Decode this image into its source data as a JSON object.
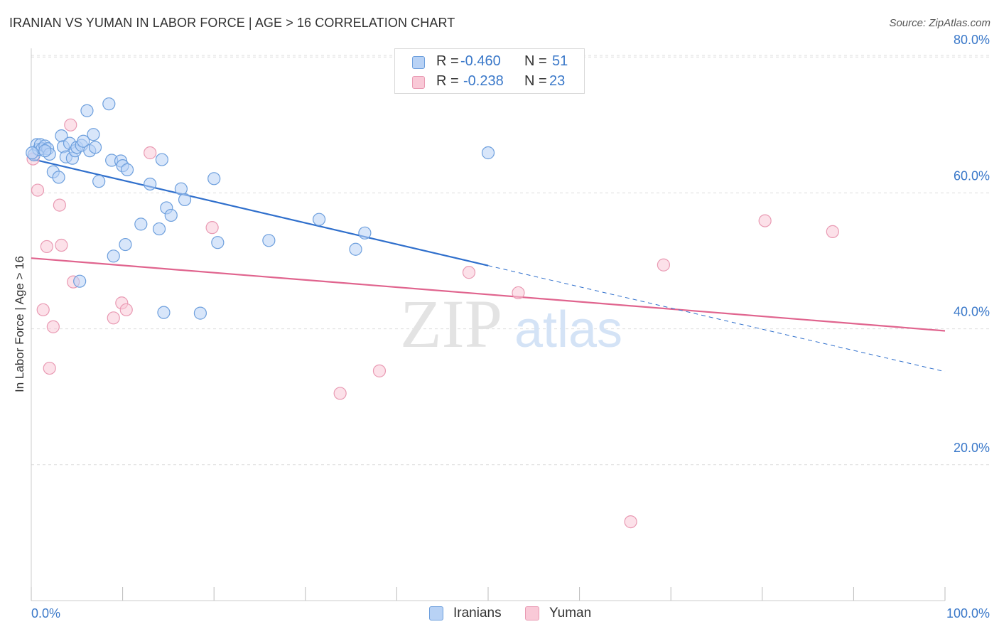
{
  "title": "IRANIAN VS YUMAN IN LABOR FORCE | AGE > 16 CORRELATION CHART",
  "source": "Source: ZipAtlas.com",
  "watermark": {
    "zip": "ZIP",
    "atlas": "atlas"
  },
  "legend": {
    "rows": [
      {
        "r_label": "R =",
        "r_value": "-0.460",
        "n_label": "N =",
        "n_value": "51"
      },
      {
        "r_label": "R =",
        "r_value": "-0.238",
        "n_label": "N =",
        "n_value": "23"
      }
    ]
  },
  "colors": {
    "blue_fill": "#b8d2f5",
    "blue_stroke": "#6d9fdd",
    "blue_line": "#2f6fcc",
    "pink_fill": "#f9c9d7",
    "pink_stroke": "#e99ab3",
    "pink_line": "#e0648e",
    "tick_text": "#3a78c9",
    "grid": "#dddddd"
  },
  "chart_data": {
    "type": "scatter",
    "title": "IRANIAN VS YUMAN IN LABOR FORCE | AGE > 16 CORRELATION CHART",
    "xlabel": "",
    "ylabel": "In Labor Force | Age > 16",
    "xlim": [
      0,
      100
    ],
    "ylim": [
      0,
      84
    ],
    "x_tick_labels": [
      "0.0%",
      "100.0%"
    ],
    "y_ticks": [
      20,
      40,
      60,
      80
    ],
    "y_tick_labels": [
      "20.0%",
      "40.0%",
      "60.0%",
      "80.0%"
    ],
    "series": [
      {
        "name": "Iranians",
        "r": -0.46,
        "n": 51,
        "points": [
          [
            0.3,
            65.6
          ],
          [
            0.6,
            67.1
          ],
          [
            0.8,
            66.4
          ],
          [
            1.0,
            67.1
          ],
          [
            1.2,
            66.5
          ],
          [
            1.5,
            66.9
          ],
          [
            1.8,
            66.5
          ],
          [
            2.0,
            65.7
          ],
          [
            2.4,
            63.1
          ],
          [
            3.0,
            62.3
          ],
          [
            3.3,
            68.4
          ],
          [
            3.5,
            66.8
          ],
          [
            3.8,
            65.3
          ],
          [
            4.2,
            67.3
          ],
          [
            4.5,
            65.1
          ],
          [
            4.8,
            66.2
          ],
          [
            5.0,
            66.7
          ],
          [
            5.5,
            67.0
          ],
          [
            5.7,
            67.6
          ],
          [
            6.1,
            72.1
          ],
          [
            6.4,
            66.2
          ],
          [
            6.8,
            68.6
          ],
          [
            7.0,
            66.7
          ],
          [
            7.4,
            61.7
          ],
          [
            8.5,
            73.1
          ],
          [
            8.8,
            64.8
          ],
          [
            9.0,
            50.7
          ],
          [
            9.8,
            64.7
          ],
          [
            10.0,
            64.0
          ],
          [
            10.3,
            52.4
          ],
          [
            10.5,
            63.4
          ],
          [
            12.0,
            55.4
          ],
          [
            13.0,
            61.3
          ],
          [
            14.0,
            54.7
          ],
          [
            14.3,
            64.9
          ],
          [
            14.5,
            42.4
          ],
          [
            14.8,
            57.8
          ],
          [
            15.3,
            56.7
          ],
          [
            16.4,
            60.6
          ],
          [
            16.8,
            59.0
          ],
          [
            18.5,
            42.3
          ],
          [
            20.0,
            62.1
          ],
          [
            20.4,
            52.7
          ],
          [
            26.0,
            53.0
          ],
          [
            31.5,
            56.1
          ],
          [
            35.5,
            51.7
          ],
          [
            36.5,
            54.1
          ],
          [
            5.3,
            47.0
          ],
          [
            50.0,
            65.9
          ],
          [
            1.5,
            66.2
          ],
          [
            0.1,
            65.9
          ]
        ],
        "trend": {
          "x": [
            0,
            50
          ],
          "y": [
            65.0,
            49.3
          ]
        },
        "trend_extension": {
          "x": [
            50,
            100
          ],
          "y": [
            49.3,
            33.7
          ]
        }
      },
      {
        "name": "Yuman",
        "r": -0.238,
        "n": 23,
        "points": [
          [
            0.2,
            65.0
          ],
          [
            0.7,
            60.4
          ],
          [
            1.3,
            42.8
          ],
          [
            1.7,
            52.1
          ],
          [
            2.0,
            34.2
          ],
          [
            2.4,
            40.3
          ],
          [
            3.1,
            58.2
          ],
          [
            3.3,
            52.3
          ],
          [
            4.3,
            70.0
          ],
          [
            4.6,
            46.9
          ],
          [
            9.0,
            41.6
          ],
          [
            9.9,
            43.8
          ],
          [
            10.4,
            42.8
          ],
          [
            13.0,
            65.9
          ],
          [
            19.8,
            54.9
          ],
          [
            33.8,
            30.5
          ],
          [
            38.1,
            33.8
          ],
          [
            47.9,
            48.3
          ],
          [
            53.3,
            45.3
          ],
          [
            65.6,
            11.6
          ],
          [
            69.2,
            49.4
          ],
          [
            80.3,
            55.9
          ],
          [
            87.7,
            54.3
          ]
        ],
        "trend": {
          "x": [
            0,
            100
          ],
          "y": [
            50.4,
            39.7
          ]
        }
      }
    ]
  }
}
